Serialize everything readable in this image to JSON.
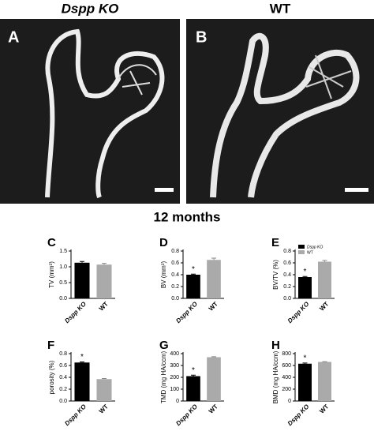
{
  "header": {
    "left_title": "Dspp KO",
    "right_title": "WT",
    "left_panel": "A",
    "right_panel": "B",
    "subtitle": "12 months"
  },
  "chart_data": [
    {
      "type": "bar",
      "panel": "C",
      "ylabel": "TV (mm³)",
      "categories": [
        "Dspp KO",
        "WT"
      ],
      "values": [
        1.13,
        1.07
      ],
      "errors": [
        0.04,
        0.04
      ],
      "colors": [
        "#000000",
        "#aaaaaa"
      ],
      "ylim": [
        0,
        1.5
      ],
      "yticks": [
        {
          "value": 0,
          "label": "0.0"
        },
        {
          "value": 0.5,
          "label": "0.5"
        },
        {
          "value": 1,
          "label": "1.0"
        },
        {
          "value": 1.5,
          "label": "1.5"
        }
      ],
      "value_annotations": [
        null,
        null
      ],
      "legend": false
    },
    {
      "type": "bar",
      "panel": "D",
      "ylabel": "BV (mm³)",
      "categories": [
        "Dspp KO",
        "WT"
      ],
      "values": [
        0.4,
        0.65
      ],
      "errors": [
        0.01,
        0.03
      ],
      "colors": [
        "#000000",
        "#aaaaaa"
      ],
      "ylim": [
        0,
        0.8
      ],
      "yticks": [
        {
          "value": 0,
          "label": "0.0"
        },
        {
          "value": 0.2,
          "label": "0.2"
        },
        {
          "value": 0.4,
          "label": "0.4"
        },
        {
          "value": 0.6,
          "label": "0.6"
        },
        {
          "value": 0.8,
          "label": "0.8"
        }
      ],
      "value_annotations": [
        "*",
        null
      ],
      "legend": false
    },
    {
      "type": "bar",
      "panel": "E",
      "ylabel": "BV/TV (%)",
      "categories": [
        "Dspp KO",
        "WT"
      ],
      "values": [
        0.36,
        0.62
      ],
      "errors": [
        0.01,
        0.02
      ],
      "colors": [
        "#000000",
        "#aaaaaa"
      ],
      "ylim": [
        0,
        0.8
      ],
      "yticks": [
        {
          "value": 0,
          "label": "0.0"
        },
        {
          "value": 0.2,
          "label": "0.2"
        },
        {
          "value": 0.4,
          "label": "0.4"
        },
        {
          "value": 0.6,
          "label": "0.6"
        },
        {
          "value": 0.8,
          "label": "0.8"
        }
      ],
      "value_annotations": [
        "*",
        null
      ],
      "legend": true
    },
    {
      "type": "bar",
      "panel": "F",
      "ylabel": "porosity (%)",
      "categories": [
        "Dspp KO",
        "WT"
      ],
      "values": [
        0.65,
        0.37
      ],
      "errors": [
        0.01,
        0.01
      ],
      "colors": [
        "#000000",
        "#aaaaaa"
      ],
      "ylim": [
        0,
        0.8
      ],
      "yticks": [
        {
          "value": 0,
          "label": "0.0"
        },
        {
          "value": 0.2,
          "label": "0.2"
        },
        {
          "value": 0.4,
          "label": "0.4"
        },
        {
          "value": 0.6,
          "label": "0.6"
        },
        {
          "value": 0.8,
          "label": "0.8"
        }
      ],
      "value_annotations": [
        "*",
        null
      ],
      "legend": false
    },
    {
      "type": "bar",
      "panel": "G",
      "ylabel": "TMD (mg HA/ccm)",
      "categories": [
        "Dspp KO",
        "WT"
      ],
      "values": [
        210,
        370
      ],
      "errors": [
        8,
        4
      ],
      "colors": [
        "#000000",
        "#aaaaaa"
      ],
      "ylim": [
        0,
        400
      ],
      "yticks": [
        0,
        100,
        200,
        300,
        400
      ],
      "value_annotations": [
        "*",
        null
      ],
      "legend": false
    },
    {
      "type": "bar",
      "panel": "H",
      "ylabel": "BMD (mg HA/ccm)",
      "categories": [
        "Dspp KO",
        "WT"
      ],
      "values": [
        630,
        660
      ],
      "errors": [
        12,
        5
      ],
      "colors": [
        "#000000",
        "#aaaaaa"
      ],
      "ylim": [
        0,
        800
      ],
      "yticks": [
        0,
        200,
        400,
        600,
        800
      ],
      "value_annotations": [
        "*",
        null
      ],
      "legend": false
    }
  ]
}
